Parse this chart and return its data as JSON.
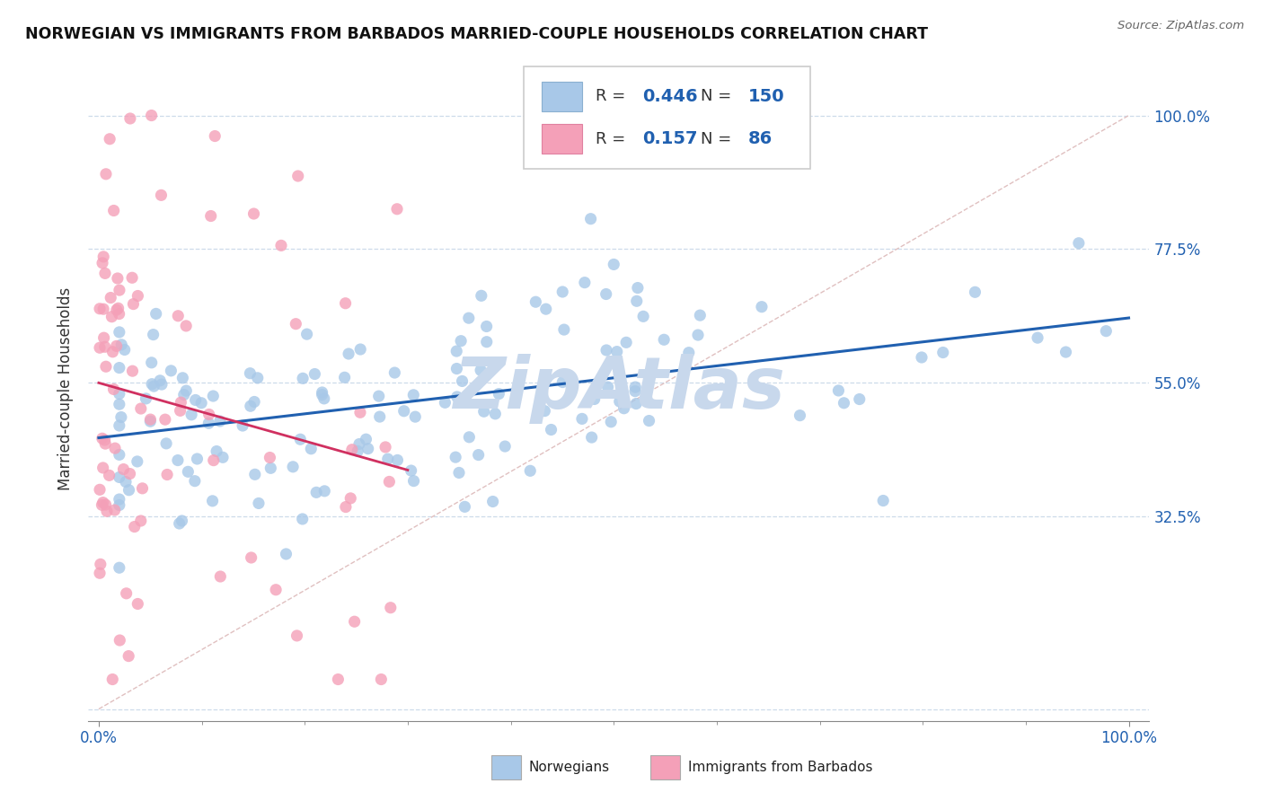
{
  "title": "NORWEGIAN VS IMMIGRANTS FROM BARBADOS MARRIED-COUPLE HOUSEHOLDS CORRELATION CHART",
  "source": "Source: ZipAtlas.com",
  "ylabel": "Married-couple Households",
  "ytick_vals": [
    0.0,
    0.325,
    0.55,
    0.775,
    1.0
  ],
  "ytick_labels": [
    "",
    "32.5%",
    "55.0%",
    "77.5%",
    "100.0%"
  ],
  "xtick_vals": [
    0.0,
    1.0
  ],
  "xtick_labels": [
    "0.0%",
    "100.0%"
  ],
  "dot_color_norwegian": "#a8c8e8",
  "dot_color_barbados": "#f4a0b8",
  "line_color_norwegian": "#2060b0",
  "line_color_barbados": "#d03060",
  "ref_line_color": "#e0c0c0",
  "grid_color": "#c8d8e8",
  "watermark_text": "ZipAtlas",
  "watermark_color": "#c8d8ec",
  "background_color": "#ffffff",
  "title_color": "#111111",
  "axis_label_color": "#2060b0",
  "legend_r1": "0.446",
  "legend_n1": "150",
  "legend_r2": "0.157",
  "legend_n2": "86",
  "legend_value_color": "#2060b0",
  "legend_text_color": "#333333",
  "bottom_legend_labels": [
    "Norwegians",
    "Immigrants from Barbados"
  ],
  "bottom_legend_colors": [
    "#a8c8e8",
    "#f4a0b8"
  ]
}
